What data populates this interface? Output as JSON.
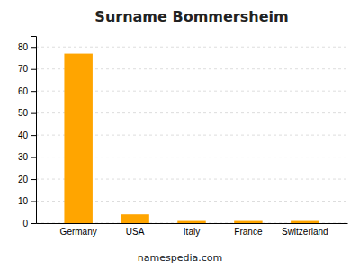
{
  "chart_data": {
    "type": "bar",
    "title": "Surname Bommersheim",
    "categories": [
      "Germany",
      "USA",
      "Italy",
      "France",
      "Switzerland"
    ],
    "values": [
      77,
      4,
      1,
      1,
      1
    ],
    "color": "#FFA500",
    "ylim": [
      0,
      85
    ],
    "yticks": [
      0,
      10,
      20,
      30,
      40,
      50,
      60,
      70,
      80
    ],
    "grid": true,
    "annotations": [
      "namespedia.com"
    ]
  }
}
